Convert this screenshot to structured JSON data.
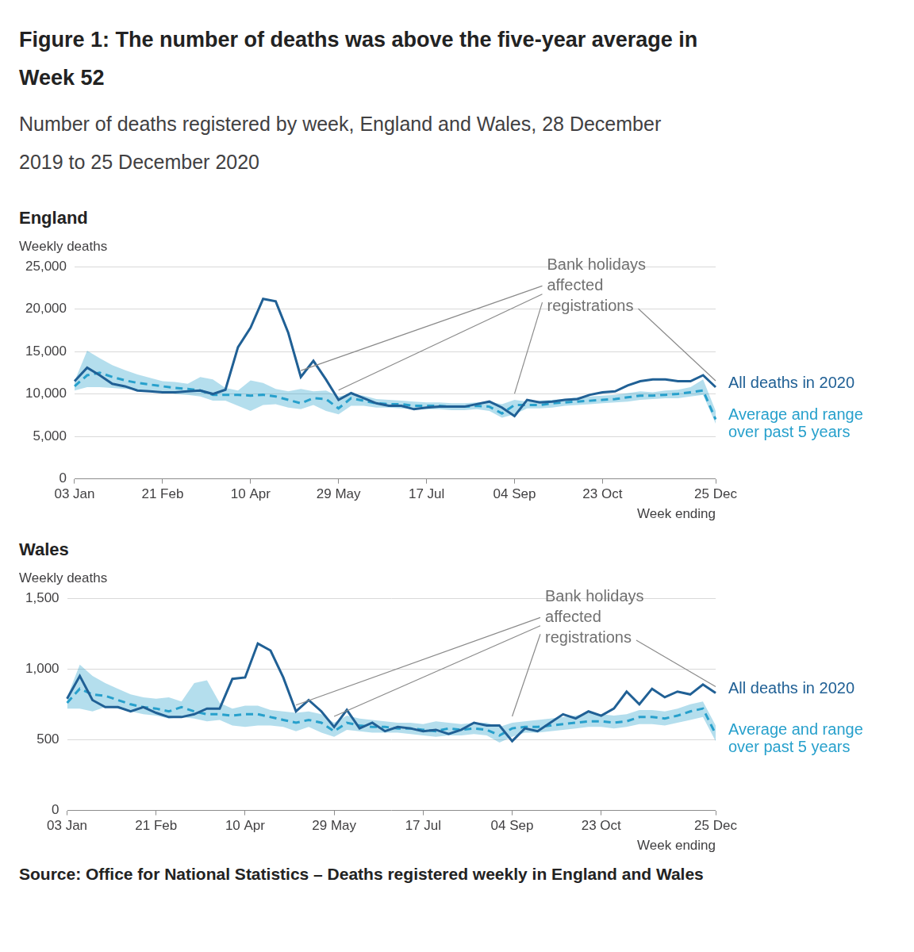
{
  "title": "Figure 1: The number of deaths was above the five-year average in Week 52",
  "subtitle": "Number of deaths registered by week, England and Wales, 28 December 2019 to 25 December 2020",
  "source": "Source: Office for National Statistics – Deaths registered weekly in England and Wales",
  "chart_data": [
    {
      "type": "line",
      "title": "England",
      "y_label": "Weekly deaths",
      "x_label": "Week ending",
      "categories": [
        "03 Jan",
        null,
        null,
        null,
        null,
        null,
        null,
        "21 Feb",
        null,
        null,
        null,
        null,
        null,
        null,
        "10 Apr",
        null,
        null,
        null,
        null,
        null,
        null,
        "29 May",
        null,
        null,
        null,
        null,
        null,
        null,
        "17 Jul",
        null,
        null,
        null,
        null,
        null,
        null,
        "04 Sep",
        null,
        null,
        null,
        null,
        null,
        null,
        "23 Oct",
        null,
        null,
        null,
        null,
        null,
        null,
        null,
        null,
        "25 Dec"
      ],
      "ylim": [
        0,
        25000
      ],
      "yticks": [
        0,
        {
          "value": 5000,
          "label": "5,000"
        },
        {
          "value": 10000,
          "label": "10,000"
        },
        {
          "value": 15000,
          "label": "15,000"
        },
        {
          "value": 20000,
          "label": "20,000"
        },
        {
          "value": 25000,
          "label": "25,000"
        }
      ],
      "grid": true,
      "series": [
        {
          "name": "All deaths in 2020",
          "color": "#206095",
          "line_style": "solid",
          "values": [
            11500,
            13100,
            12200,
            11200,
            10900,
            10400,
            10300,
            10200,
            10200,
            10300,
            10400,
            10000,
            10500,
            15500,
            17800,
            21200,
            20900,
            17200,
            12000,
            13900,
            11700,
            9300,
            10100,
            9500,
            8900,
            8600,
            8600,
            8200,
            8400,
            8500,
            8500,
            8500,
            8800,
            9100,
            8400,
            7400,
            9300,
            9000,
            9100,
            9300,
            9400,
            9900,
            10200,
            10300,
            11000,
            11500,
            11700,
            11700,
            11500,
            11500,
            12200,
            10800
          ]
        },
        {
          "name": "Average and range over past 5 years",
          "color": "#27a0cc",
          "line_style": "dashed",
          "values": [
            10900,
            12200,
            12500,
            12000,
            11600,
            11300,
            11100,
            10900,
            10700,
            10600,
            10400,
            9900,
            9900,
            9900,
            9800,
            9900,
            9700,
            9300,
            8900,
            9500,
            9400,
            8300,
            9500,
            9200,
            8900,
            8800,
            8800,
            8600,
            8600,
            8600,
            8500,
            8500,
            8600,
            8500,
            7700,
            8700,
            8700,
            8700,
            8900,
            9000,
            9100,
            9200,
            9300,
            9400,
            9600,
            9800,
            9800,
            9900,
            10000,
            10200,
            10400,
            7000
          ],
          "range_low": [
            10400,
            10800,
            10800,
            10700,
            10600,
            10500,
            10400,
            10300,
            10000,
            9900,
            9700,
            9200,
            9200,
            8600,
            8000,
            8700,
            8800,
            8400,
            8200,
            8700,
            8000,
            7600,
            8600,
            8600,
            8400,
            8400,
            8300,
            8200,
            8200,
            8200,
            8100,
            8100,
            8200,
            8000,
            7200,
            7600,
            8300,
            8300,
            8400,
            8600,
            8700,
            8800,
            8900,
            9000,
            9100,
            9300,
            9400,
            9500,
            9500,
            9700,
            9900,
            6500
          ],
          "range_high": [
            11500,
            15100,
            14200,
            13400,
            12800,
            12300,
            11900,
            11500,
            11400,
            11200,
            12000,
            11700,
            10700,
            10400,
            11600,
            11300,
            10600,
            10300,
            10600,
            10300,
            10400,
            9700,
            10000,
            9800,
            9400,
            9300,
            9200,
            9100,
            9000,
            9000,
            8900,
            8900,
            9000,
            9100,
            8800,
            9300,
            9100,
            9200,
            9300,
            9400,
            9600,
            9700,
            9800,
            9900,
            10100,
            10300,
            10200,
            10400,
            10500,
            10800,
            11700,
            8000
          ]
        }
      ],
      "annotations": [
        {
          "text": "Bank holidays affected registrations",
          "weeks": [
            19,
            22,
            36,
            52
          ]
        }
      ]
    },
    {
      "type": "line",
      "title": "Wales",
      "y_label": "Weekly deaths",
      "x_label": "Week ending",
      "categories": [
        "03 Jan",
        null,
        null,
        null,
        null,
        null,
        null,
        "21 Feb",
        null,
        null,
        null,
        null,
        null,
        null,
        "10 Apr",
        null,
        null,
        null,
        null,
        null,
        null,
        "29 May",
        null,
        null,
        null,
        null,
        null,
        null,
        "17 Jul",
        null,
        null,
        null,
        null,
        null,
        null,
        "04 Sep",
        null,
        null,
        null,
        null,
        null,
        null,
        "23 Oct",
        null,
        null,
        null,
        null,
        null,
        null,
        null,
        null,
        "25 Dec"
      ],
      "ylim": [
        0,
        1500
      ],
      "yticks": [
        0,
        500,
        {
          "value": 1000,
          "label": "1,000"
        },
        {
          "value": 1500,
          "label": "1,500"
        }
      ],
      "grid": true,
      "series": [
        {
          "name": "All deaths in 2020",
          "color": "#206095",
          "line_style": "solid",
          "values": [
            790,
            950,
            780,
            730,
            730,
            700,
            730,
            690,
            660,
            660,
            680,
            720,
            720,
            930,
            940,
            1180,
            1130,
            940,
            700,
            780,
            700,
            590,
            710,
            580,
            620,
            560,
            590,
            580,
            560,
            570,
            540,
            570,
            620,
            600,
            600,
            490,
            580,
            560,
            620,
            680,
            650,
            700,
            670,
            720,
            840,
            750,
            860,
            800,
            840,
            820,
            890,
            830
          ]
        },
        {
          "name": "Average and range over past 5 years",
          "color": "#27a0cc",
          "line_style": "dashed",
          "values": [
            760,
            860,
            820,
            810,
            780,
            750,
            730,
            720,
            700,
            730,
            700,
            680,
            680,
            670,
            680,
            680,
            660,
            640,
            620,
            640,
            620,
            560,
            620,
            600,
            590,
            590,
            580,
            580,
            570,
            560,
            580,
            570,
            580,
            570,
            530,
            580,
            590,
            590,
            600,
            610,
            620,
            630,
            630,
            620,
            630,
            660,
            660,
            650,
            670,
            700,
            720,
            540
          ],
          "range_low": [
            720,
            720,
            700,
            730,
            720,
            700,
            680,
            670,
            650,
            660,
            650,
            630,
            640,
            600,
            590,
            600,
            600,
            590,
            560,
            590,
            550,
            520,
            570,
            560,
            550,
            550,
            550,
            540,
            530,
            520,
            530,
            530,
            540,
            530,
            480,
            520,
            550,
            550,
            560,
            570,
            580,
            590,
            590,
            580,
            590,
            610,
            610,
            600,
            620,
            640,
            660,
            490
          ],
          "range_high": [
            800,
            1030,
            950,
            900,
            860,
            820,
            800,
            790,
            800,
            770,
            900,
            920,
            760,
            720,
            740,
            740,
            710,
            700,
            690,
            700,
            680,
            620,
            670,
            650,
            640,
            630,
            620,
            620,
            610,
            630,
            620,
            610,
            620,
            620,
            590,
            620,
            630,
            640,
            650,
            660,
            670,
            690,
            680,
            670,
            680,
            710,
            710,
            700,
            720,
            750,
            770,
            600
          ]
        }
      ],
      "annotations": [
        {
          "text": "Bank holidays affected registrations",
          "weeks": [
            19,
            22,
            36,
            52
          ]
        }
      ]
    }
  ]
}
